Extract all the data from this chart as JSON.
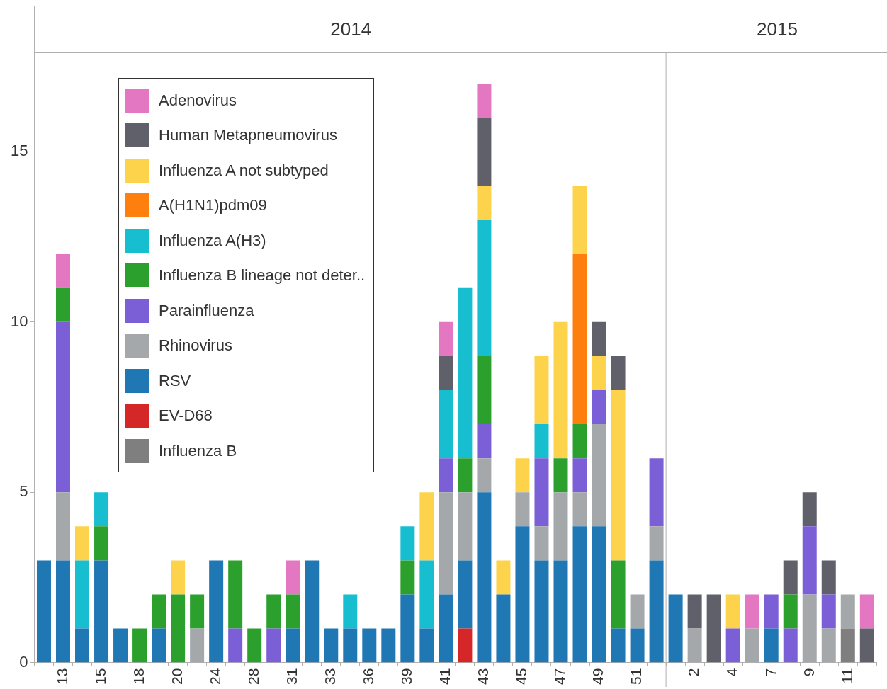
{
  "chart_data": {
    "type": "bar",
    "stacked": true,
    "categories": [
      null,
      "13",
      null,
      "15",
      null,
      "18",
      null,
      "20",
      null,
      "24",
      null,
      "28",
      null,
      "31",
      null,
      "33",
      null,
      "36",
      null,
      "39",
      null,
      "41",
      null,
      "43",
      null,
      "45",
      null,
      "47",
      null,
      "49",
      null,
      "51",
      null,
      null,
      "2",
      null,
      "4",
      null,
      "7",
      null,
      "9",
      null,
      "11",
      null
    ],
    "series": [
      {
        "name": "Influenza B",
        "color": "#7f7f7f",
        "values": [
          null,
          null,
          null,
          null,
          null,
          null,
          null,
          null,
          null,
          null,
          null,
          null,
          null,
          null,
          null,
          null,
          null,
          null,
          null,
          null,
          null,
          null,
          null,
          null,
          null,
          null,
          null,
          null,
          null,
          null,
          null,
          null,
          null,
          null,
          null,
          null,
          null,
          null,
          null,
          null,
          null,
          null,
          1,
          null
        ]
      },
      {
        "name": "EV-D68",
        "color": "#d62728",
        "values": [
          null,
          null,
          null,
          null,
          null,
          null,
          null,
          null,
          null,
          null,
          null,
          null,
          null,
          null,
          null,
          null,
          null,
          null,
          null,
          null,
          null,
          null,
          1,
          null,
          null,
          null,
          null,
          null,
          null,
          null,
          null,
          null,
          null,
          null,
          null,
          null,
          null,
          null,
          null,
          null,
          null,
          null,
          null,
          null
        ]
      },
      {
        "name": "RSV",
        "color": "#1f77b4",
        "values": [
          3,
          3,
          1,
          3,
          1,
          null,
          1,
          null,
          null,
          3,
          null,
          null,
          null,
          1,
          3,
          1,
          1,
          1,
          1,
          2,
          1,
          2,
          2,
          5,
          2,
          4,
          3,
          3,
          4,
          4,
          1,
          1,
          3,
          2,
          null,
          null,
          null,
          null,
          1,
          null,
          null,
          null,
          null,
          null
        ]
      },
      {
        "name": "Rhinovirus",
        "color": "#a5a8ab",
        "values": [
          null,
          2,
          null,
          null,
          null,
          null,
          null,
          null,
          1,
          null,
          null,
          null,
          null,
          null,
          null,
          null,
          null,
          null,
          null,
          null,
          null,
          3,
          2,
          1,
          null,
          1,
          1,
          2,
          1,
          3,
          null,
          1,
          1,
          null,
          1,
          null,
          null,
          1,
          null,
          null,
          2,
          1,
          1,
          null
        ]
      },
      {
        "name": "Parainfluenza",
        "color": "#7b5fd6",
        "values": [
          null,
          5,
          null,
          null,
          null,
          null,
          null,
          null,
          null,
          null,
          1,
          null,
          1,
          null,
          null,
          null,
          null,
          null,
          null,
          null,
          null,
          1,
          null,
          1,
          null,
          null,
          2,
          null,
          1,
          1,
          null,
          null,
          2,
          null,
          null,
          null,
          1,
          null,
          1,
          1,
          2,
          1,
          null,
          null
        ]
      },
      {
        "name": "Influenza B lineage not deter..",
        "color": "#2ca02c",
        "values": [
          null,
          1,
          null,
          1,
          null,
          1,
          1,
          2,
          1,
          null,
          2,
          1,
          1,
          1,
          null,
          null,
          null,
          null,
          null,
          1,
          null,
          null,
          1,
          2,
          null,
          null,
          null,
          1,
          1,
          null,
          2,
          null,
          null,
          null,
          null,
          null,
          null,
          null,
          null,
          1,
          null,
          null,
          null,
          null
        ]
      },
      {
        "name": "Influenza A(H3)",
        "color": "#17becf",
        "values": [
          null,
          null,
          2,
          1,
          null,
          null,
          null,
          null,
          null,
          null,
          null,
          null,
          null,
          null,
          null,
          null,
          1,
          null,
          null,
          1,
          2,
          2,
          5,
          4,
          null,
          null,
          1,
          null,
          null,
          null,
          null,
          null,
          null,
          null,
          null,
          null,
          null,
          null,
          null,
          null,
          null,
          null,
          null,
          null
        ]
      },
      {
        "name": "A(H1N1)pdm09",
        "color": "#ff7f0e",
        "values": [
          null,
          null,
          null,
          null,
          null,
          null,
          null,
          null,
          null,
          null,
          null,
          null,
          null,
          null,
          null,
          null,
          null,
          null,
          null,
          null,
          null,
          null,
          null,
          null,
          null,
          null,
          null,
          null,
          5,
          null,
          null,
          null,
          null,
          null,
          null,
          null,
          null,
          null,
          null,
          null,
          null,
          null,
          null,
          null
        ]
      },
      {
        "name": "Influenza A not subtyped",
        "color": "#fdd34b",
        "values": [
          null,
          null,
          1,
          null,
          null,
          null,
          null,
          1,
          null,
          null,
          null,
          null,
          null,
          null,
          null,
          null,
          null,
          null,
          null,
          null,
          2,
          null,
          null,
          1,
          1,
          1,
          2,
          4,
          2,
          1,
          5,
          null,
          null,
          null,
          null,
          null,
          1,
          null,
          null,
          null,
          null,
          null,
          null,
          null
        ]
      },
      {
        "name": "Human Metapneumovirus",
        "color": "#5f6069",
        "values": [
          null,
          null,
          null,
          null,
          null,
          null,
          null,
          null,
          null,
          null,
          null,
          null,
          null,
          null,
          null,
          null,
          null,
          null,
          null,
          null,
          null,
          1,
          null,
          2,
          null,
          null,
          null,
          null,
          null,
          1,
          1,
          null,
          null,
          null,
          1,
          2,
          null,
          null,
          null,
          1,
          1,
          1,
          null,
          1
        ]
      },
      {
        "name": "Adenovirus",
        "color": "#e377c2",
        "values": [
          null,
          1,
          null,
          null,
          null,
          null,
          null,
          null,
          null,
          null,
          null,
          null,
          null,
          1,
          null,
          null,
          null,
          null,
          null,
          null,
          null,
          1,
          null,
          1,
          null,
          null,
          null,
          null,
          null,
          null,
          null,
          null,
          null,
          null,
          null,
          null,
          null,
          1,
          null,
          null,
          null,
          null,
          null,
          1
        ]
      }
    ],
    "ylim": [
      0,
      17.9
    ],
    "yticks": [
      0,
      5,
      10,
      15
    ],
    "annotations": [
      "2014",
      "2015"
    ],
    "legend": "top left"
  }
}
